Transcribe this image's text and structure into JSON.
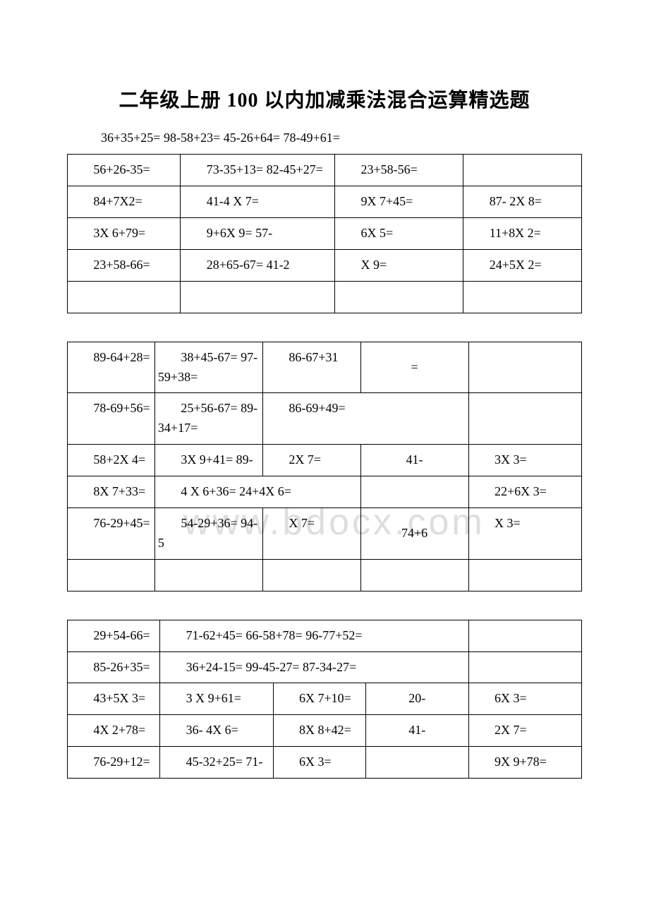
{
  "title": "二年级上册 100 以内加减乘法混合运算精选题",
  "loose_line": "36+35+25= 98-58+23= 45-26+64= 78-49+61=",
  "watermark": "www.bdocx.com",
  "table1": {
    "col_widths": [
      "22%",
      "30%",
      "25%",
      "23%"
    ],
    "rows": [
      [
        "56+26-35=",
        "73-35+13= 82-45+27=",
        "23+58-56=",
        ""
      ],
      [
        "84+7X2=",
        "41-4 X 7=",
        "9X 7+45=",
        "87- 2X 8="
      ],
      [
        "3X 6+79=",
        "9+6X 9= 57-",
        "6X 5=",
        "11+8X 2="
      ],
      [
        "23+58-66=",
        "28+65-67= 41-2",
        "X 9=",
        "24+5X 2="
      ],
      [
        "",
        "",
        "",
        ""
      ]
    ]
  },
  "table2": {
    "rows": [
      [
        {
          "html": "89-64+28=",
          "colspan": 1
        },
        {
          "html": "38+45-67= 97-59+38=",
          "colspan": 1
        },
        {
          "html": "86-67+31",
          "colspan": 1
        },
        {
          "html": "=",
          "colspan": 1
        },
        {
          "html": "",
          "colspan": 1
        }
      ],
      [
        {
          "html": "78-69+56=",
          "colspan": 1
        },
        {
          "html": "25+56-67= 89-34+17=",
          "colspan": 1
        },
        {
          "html": "86-69+49=",
          "colspan": 2
        },
        {
          "html": "",
          "colspan": 1
        }
      ],
      [
        {
          "html": "58+2X 4=",
          "colspan": 1
        },
        {
          "html": "3X 9+41= 89-",
          "colspan": 1
        },
        {
          "html": "2X 7=",
          "colspan": 1
        },
        {
          "html": "41-",
          "colspan": 1
        },
        {
          "html": "3X 3=",
          "colspan": 1
        }
      ],
      [
        {
          "html": "8X 7+33=",
          "colspan": 1
        },
        {
          "html": "4 X 6+36= 24+4X 6=",
          "colspan": 2
        },
        {
          "html": "",
          "colspan": 1
        },
        {
          "html": "22+6X 3=",
          "colspan": 1
        }
      ],
      [
        {
          "html": "76-29+45=",
          "colspan": 1
        },
        {
          "html": "54-29+36= 94-5",
          "colspan": 1
        },
        {
          "html": "X 7=",
          "colspan": 1
        },
        {
          "html": "74+6",
          "colspan": 1
        },
        {
          "html": "X 3=",
          "colspan": 1
        }
      ],
      [
        {
          "html": "",
          "colspan": 1
        },
        {
          "html": "",
          "colspan": 1
        },
        {
          "html": "",
          "colspan": 1
        },
        {
          "html": "",
          "colspan": 1
        },
        {
          "html": "",
          "colspan": 1
        }
      ]
    ],
    "col_widths": [
      "17%",
      "21%",
      "19%",
      "21%",
      "22%"
    ]
  },
  "table3": {
    "rows": [
      [
        {
          "html": "29+54-66=",
          "colspan": 1
        },
        {
          "html": "71-62+45= 66-58+78= 96-77+52=",
          "colspan": 3
        },
        {
          "html": "",
          "colspan": 1
        }
      ],
      [
        {
          "html": "85-26+35=",
          "colspan": 1
        },
        {
          "html": "36+24-15= 99-45-27= 87-34-27=",
          "colspan": 3
        },
        {
          "html": "",
          "colspan": 1
        }
      ],
      [
        {
          "html": "43+5X 3=",
          "colspan": 1
        },
        {
          "html": "3 X 9+61=",
          "colspan": 1
        },
        {
          "html": "6X 7+10=",
          "colspan": 1
        },
        {
          "html": "20-",
          "colspan": 1
        },
        {
          "html": "6X 3=",
          "colspan": 1
        }
      ],
      [
        {
          "html": "4X 2+78=",
          "colspan": 1
        },
        {
          "html": "36- 4X 6=",
          "colspan": 1
        },
        {
          "html": "8X 8+42=",
          "colspan": 1
        },
        {
          "html": "41-",
          "colspan": 1
        },
        {
          "html": "2X 7=",
          "colspan": 1
        }
      ],
      [
        {
          "html": "76-29+12=",
          "colspan": 1
        },
        {
          "html": "45-32+25= 71-",
          "colspan": 1
        },
        {
          "html": "6X 3=",
          "colspan": 1
        },
        {
          "html": "",
          "colspan": 1
        },
        {
          "html": "9X 9+78=",
          "colspan": 1
        }
      ]
    ],
    "col_widths": [
      "18%",
      "22%",
      "18%",
      "20%",
      "22%"
    ]
  },
  "style": {
    "page_bg": "#ffffff",
    "text_color": "#000000",
    "border_color": "#000000",
    "title_fontsize": 28,
    "body_fontsize": 18,
    "watermark_color": "#dedede"
  }
}
